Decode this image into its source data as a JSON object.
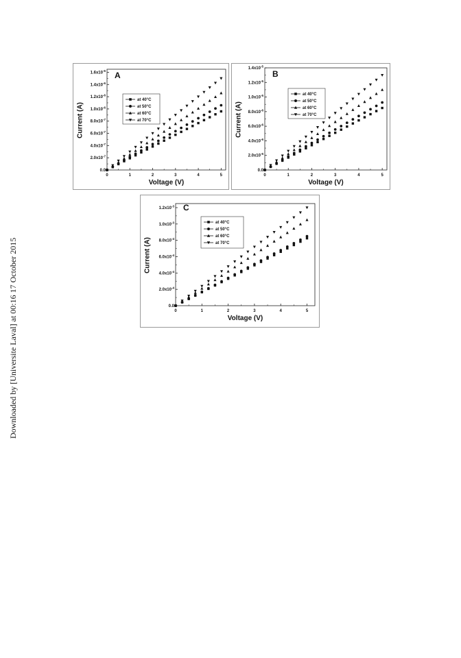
{
  "page": {
    "watermark": "Downloaded by [Universite Laval] at 00:16 17 October 2015"
  },
  "chart_data": [
    {
      "type": "scatter",
      "panel": "A",
      "xlabel": "Voltage (V)",
      "ylabel": "Current (A)",
      "xlim": [
        0,
        5.2
      ],
      "ylim": [
        0,
        1.65e-06
      ],
      "x_ticks": [
        0,
        1,
        2,
        3,
        4,
        5
      ],
      "x_tick_labels": [
        "0",
        "1",
        "2",
        "3",
        "4",
        "5"
      ],
      "y_ticks": [
        0,
        2e-07,
        4e-07,
        6e-07,
        8e-07,
        1e-06,
        1.2e-06,
        1.4e-06,
        1.6e-06
      ],
      "y_tick_labels": [
        "0.0",
        "2.0x10⁻⁷",
        "4.0x10⁻⁷",
        "6.0x10⁻⁷",
        "8.0x10⁻⁷",
        "1.0x10⁻⁶",
        "1.2x10⁻⁶",
        "1.4x10⁻⁶",
        "1.6x10⁻⁶"
      ],
      "legend_position": "upper-left",
      "x": [
        0,
        0.25,
        0.5,
        0.75,
        1,
        1.25,
        1.5,
        1.75,
        2,
        2.25,
        2.5,
        2.75,
        3,
        3.25,
        3.5,
        3.75,
        4,
        4.25,
        4.5,
        4.75,
        5
      ],
      "series": [
        {
          "name": "at 40°C",
          "marker": "square",
          "slope": 1.92e-07
        },
        {
          "name": "at 50°C",
          "marker": "circle",
          "slope": 2.12e-07
        },
        {
          "name": "at 60°C",
          "marker": "triangle-up",
          "slope": 2.52e-07
        },
        {
          "name": "at 70°C",
          "marker": "triangle-down",
          "slope": 3e-07
        }
      ]
    },
    {
      "type": "scatter",
      "panel": "B",
      "xlabel": "Voltage (V)",
      "ylabel": "Current (A)",
      "xlim": [
        0,
        5.2
      ],
      "ylim": [
        0,
        1.4e-05
      ],
      "x_ticks": [
        0,
        1,
        2,
        3,
        4,
        5
      ],
      "x_tick_labels": [
        "0",
        "1",
        "2",
        "3",
        "4",
        "5"
      ],
      "y_ticks": [
        0,
        2e-06,
        4e-06,
        6e-06,
        8e-06,
        1e-05,
        1.2e-05,
        1.4e-05
      ],
      "y_tick_labels": [
        "0.0",
        "2.0x10⁻⁶",
        "4.0x10⁻⁶",
        "6.0x10⁻⁶",
        "8.0x10⁻⁶",
        "1.0x10⁻⁵",
        "1.2x10⁻⁵",
        "1.4x10⁻⁵"
      ],
      "legend_position": "upper-left",
      "x": [
        0,
        0.25,
        0.5,
        0.75,
        1,
        1.25,
        1.5,
        1.75,
        2,
        2.25,
        2.5,
        2.75,
        3,
        3.25,
        3.5,
        3.75,
        4,
        4.25,
        4.5,
        4.75,
        5
      ],
      "series": [
        {
          "name": "at 40°C",
          "marker": "square",
          "slope": 1.7e-06
        },
        {
          "name": "at 50°C",
          "marker": "circle",
          "slope": 1.85e-06
        },
        {
          "name": "at 60°C",
          "marker": "triangle-up",
          "slope": 2.2e-06
        },
        {
          "name": "at 70°C",
          "marker": "triangle-down",
          "slope": 2.6e-06
        }
      ]
    },
    {
      "type": "scatter",
      "panel": "C",
      "xlabel": "Voltage (V)",
      "ylabel": "Current (A)",
      "xlim": [
        0,
        5.3
      ],
      "ylim": [
        0,
        0.00125
      ],
      "x_ticks": [
        0,
        1,
        2,
        3,
        4,
        5
      ],
      "x_tick_labels": [
        "0",
        "1",
        "2",
        "3",
        "4",
        "5"
      ],
      "y_ticks": [
        0,
        0.0002,
        0.0004,
        0.0006,
        0.0008,
        0.001,
        0.0012
      ],
      "y_tick_labels": [
        "0.0",
        "2.0x10⁻⁴",
        "4.0x10⁻⁴",
        "6.0x10⁻⁴",
        "8.0x10⁻⁴",
        "1.0x10⁻³",
        "1.2x10⁻³"
      ],
      "legend_position": "upper-left",
      "x": [
        0,
        0.25,
        0.5,
        0.75,
        1,
        1.25,
        1.5,
        1.75,
        2,
        2.25,
        2.5,
        2.75,
        3,
        3.25,
        3.5,
        3.75,
        4,
        4.25,
        4.5,
        4.75,
        5
      ],
      "series": [
        {
          "name": "at 40°C",
          "marker": "square",
          "slope": 0.000165
        },
        {
          "name": "at 50°C",
          "marker": "circle",
          "slope": 0.00017
        },
        {
          "name": "at 60°C",
          "marker": "triangle-up",
          "slope": 0.00021
        },
        {
          "name": "at 70°C",
          "marker": "triangle-down",
          "slope": 0.00024
        }
      ]
    }
  ]
}
